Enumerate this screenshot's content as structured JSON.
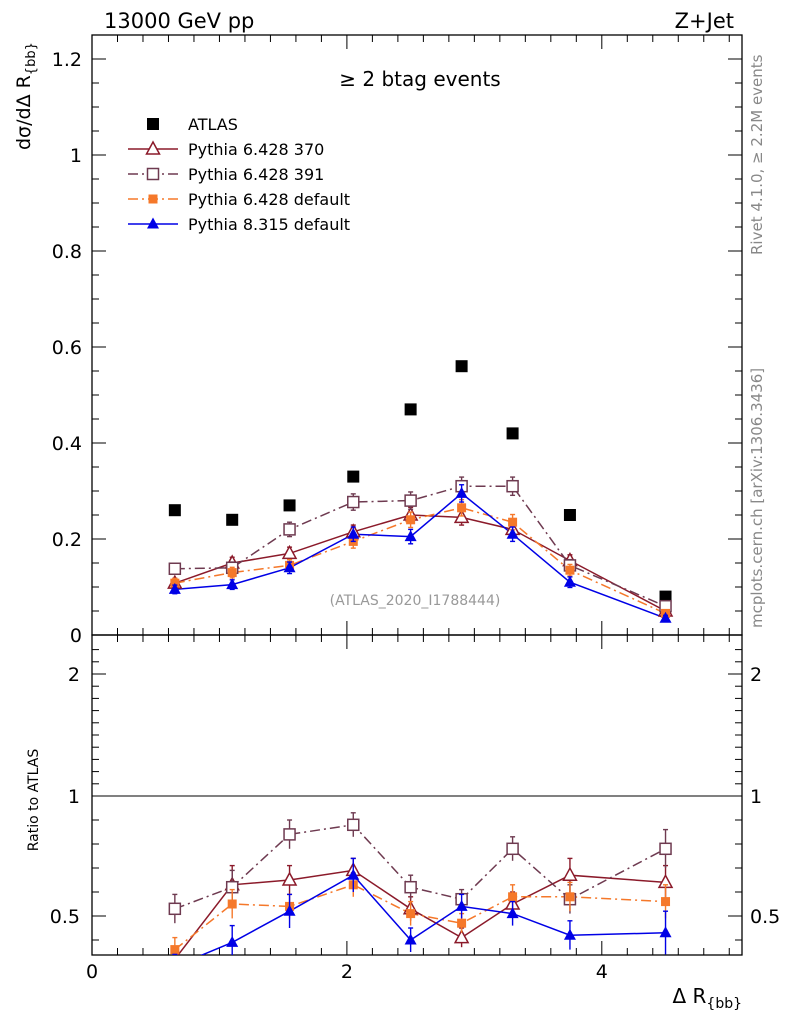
{
  "header": {
    "left": "13000 GeV pp",
    "right": "Z+Jet"
  },
  "side_labels": {
    "rivet": "Rivet 4.1.0, ≥ 2.2M events",
    "mcplots": "mcplots.cern.ch [arXiv:1306.3436]"
  },
  "chart_data": {
    "type": "scatter",
    "title": "≥ 2 btag events",
    "analysis_label": "(ATLAS_2020_I1788444)",
    "xlabel": "Δ R",
    "xlabel_sub": "{bb}",
    "ylabel": "dσ/dΔ R",
    "ylabel_sub": "{bb}",
    "ratio_ylabel": "Ratio to ATLAS",
    "xlim": [
      0,
      5.1
    ],
    "ylim": [
      0,
      1.25
    ],
    "ratio_ylim": [
      0.33,
      2.3
    ],
    "x_ticks": [
      "0",
      "2",
      "4"
    ],
    "y_ticks": [
      "0",
      "0.2",
      "0.4",
      "0.6",
      "0.8",
      "1",
      "1.2"
    ],
    "ratio_y_ticks": [
      "0.5",
      "1",
      "2"
    ],
    "x": [
      0.65,
      1.1,
      1.55,
      2.05,
      2.5,
      2.9,
      3.3,
      3.75,
      4.5
    ],
    "series": [
      {
        "name": "ATLAS",
        "color": "#000000",
        "marker": "square",
        "values": [
          0.26,
          0.24,
          0.27,
          0.33,
          0.47,
          0.56,
          0.42,
          0.25,
          0.08
        ]
      },
      {
        "name": "Pythia 6.428 370",
        "color": "#8b1a2a",
        "marker": "open-triangle",
        "line": "solid",
        "values": [
          0.108,
          0.15,
          0.17,
          0.215,
          0.25,
          0.245,
          0.22,
          0.155,
          0.05
        ],
        "errors": [
          0.01,
          0.012,
          0.013,
          0.014,
          0.016,
          0.016,
          0.015,
          0.012,
          0.006
        ],
        "ratio": [
          0.32,
          0.63,
          0.65,
          0.69,
          0.53,
          0.41,
          0.55,
          0.67,
          0.64
        ],
        "ratio_errors": [
          0.05,
          0.08,
          0.06,
          0.05,
          0.05,
          0.04,
          0.05,
          0.07,
          0.07
        ]
      },
      {
        "name": "Pythia 6.428 391",
        "color": "#6e3a50",
        "marker": "open-square",
        "line": "dashdot",
        "values": [
          0.138,
          0.14,
          0.22,
          0.277,
          0.28,
          0.31,
          0.31,
          0.145,
          0.06
        ],
        "errors": [
          0.011,
          0.012,
          0.015,
          0.017,
          0.018,
          0.019,
          0.019,
          0.012,
          0.007
        ],
        "ratio": [
          0.53,
          0.62,
          0.84,
          0.88,
          0.62,
          0.57,
          0.78,
          0.57,
          0.78
        ],
        "ratio_errors": [
          0.06,
          0.07,
          0.06,
          0.05,
          0.05,
          0.04,
          0.05,
          0.06,
          0.08
        ]
      },
      {
        "name": "Pythia 6.428 default",
        "color": "#f5782a",
        "marker": "filled-square",
        "line": "dashdot",
        "values": [
          0.108,
          0.13,
          0.145,
          0.195,
          0.24,
          0.265,
          0.235,
          0.135,
          0.045
        ],
        "errors": [
          0.01,
          0.011,
          0.012,
          0.014,
          0.016,
          0.017,
          0.016,
          0.012,
          0.006
        ],
        "ratio": [
          0.36,
          0.55,
          0.54,
          0.63,
          0.51,
          0.47,
          0.58,
          0.58,
          0.56
        ],
        "ratio_errors": [
          0.05,
          0.06,
          0.05,
          0.05,
          0.05,
          0.04,
          0.05,
          0.06,
          0.07
        ]
      },
      {
        "name": "Pythia 8.315 default",
        "color": "#0000e6",
        "marker": "filled-triangle",
        "line": "solid",
        "values": [
          0.095,
          0.105,
          0.14,
          0.21,
          0.205,
          0.295,
          0.21,
          0.11,
          0.035
        ],
        "errors": [
          0.009,
          0.01,
          0.012,
          0.015,
          0.015,
          0.018,
          0.015,
          0.011,
          0.006
        ],
        "ratio": [
          0.29,
          0.39,
          0.52,
          0.67,
          0.4,
          0.54,
          0.51,
          0.42,
          0.43
        ],
        "ratio_errors": [
          0.05,
          0.07,
          0.07,
          0.07,
          0.05,
          0.05,
          0.05,
          0.06,
          0.09
        ]
      }
    ]
  }
}
